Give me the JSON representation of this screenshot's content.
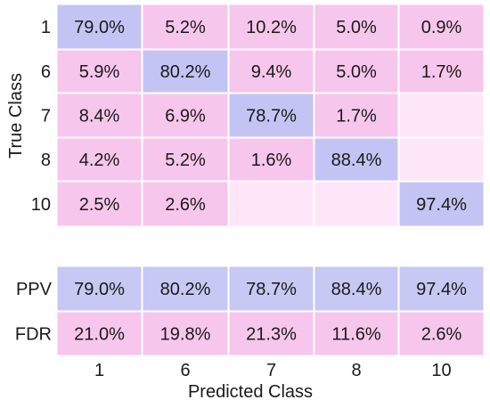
{
  "chart_data": {
    "type": "heatmap",
    "title": "",
    "xlabel": "Predicted Class",
    "ylabel": "True Class",
    "x_categories": [
      "1",
      "6",
      "7",
      "8",
      "10"
    ],
    "y_categories": [
      "1",
      "6",
      "7",
      "8",
      "10"
    ],
    "matrix": [
      [
        "79.0%",
        "5.2%",
        "10.2%",
        "5.0%",
        "0.9%"
      ],
      [
        "5.9%",
        "80.2%",
        "9.4%",
        "5.0%",
        "1.7%"
      ],
      [
        "8.4%",
        "6.9%",
        "78.7%",
        "1.7%",
        ""
      ],
      [
        "4.2%",
        "5.2%",
        "1.6%",
        "88.4%",
        ""
      ],
      [
        "2.5%",
        "2.6%",
        "",
        "",
        "97.4%"
      ]
    ],
    "summary_rows": [
      {
        "label": "PPV",
        "values": [
          "79.0%",
          "80.2%",
          "78.7%",
          "88.4%",
          "97.4%"
        ]
      },
      {
        "label": "FDR",
        "values": [
          "21.0%",
          "19.8%",
          "21.3%",
          "11.6%",
          "2.6%"
        ]
      }
    ],
    "colors": {
      "diagonal": "#c4c4f4",
      "off_diagonal": "#f7c6ec",
      "empty": "#fde6f7",
      "ppv": "#c8c8f4",
      "fdr": "#f7c6ec",
      "grid": "#ffffff"
    }
  }
}
